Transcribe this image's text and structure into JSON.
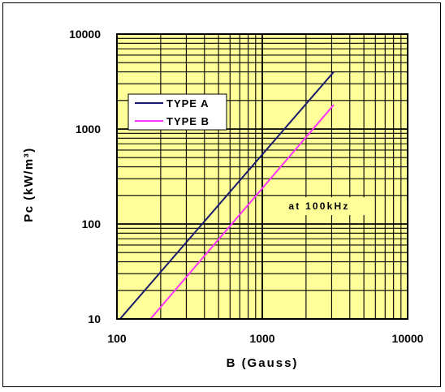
{
  "chart_data": {
    "type": "line",
    "title": "",
    "xlabel": "B (Gauss)",
    "ylabel": "Pc (kW/m³)",
    "xscale": "log",
    "yscale": "log",
    "xlim": [
      100,
      10000
    ],
    "ylim": [
      10,
      10000
    ],
    "x_ticks": [
      "100",
      "1000",
      "10000"
    ],
    "y_ticks": [
      "10",
      "100",
      "1000",
      "10000"
    ],
    "grid": true,
    "legend_position": "upper-left",
    "annotation": "at 100kHz",
    "colors": {
      "plot_background": "#ffff99",
      "grid": "#000000"
    },
    "series": [
      {
        "name": "TYPE A",
        "color": "#1a1a6e",
        "x": [
          105,
          3100
        ],
        "y": [
          10,
          4000
        ]
      },
      {
        "name": "TYPE B",
        "color": "#ff33ff",
        "x": [
          170,
          3100
        ],
        "y": [
          10,
          1800
        ]
      }
    ]
  }
}
